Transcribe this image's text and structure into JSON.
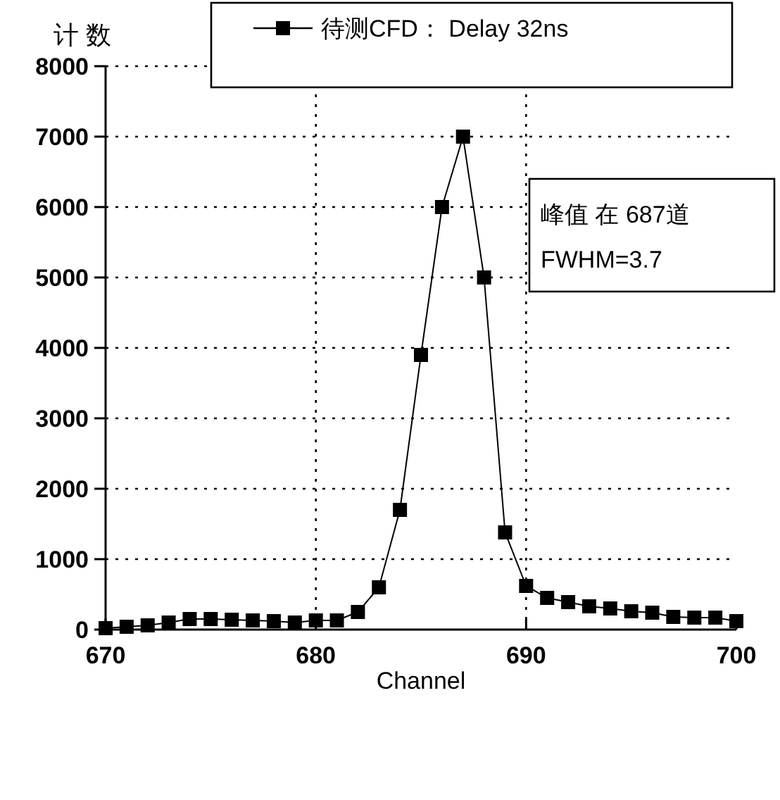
{
  "chart_data": {
    "type": "line",
    "xlabel": "Channel",
    "ylabel": "计 数",
    "x": [
      670,
      671,
      672,
      673,
      674,
      675,
      676,
      677,
      678,
      679,
      680,
      681,
      682,
      683,
      684,
      685,
      686,
      687,
      688,
      689,
      690,
      691,
      692,
      693,
      694,
      695,
      696,
      697,
      698,
      699,
      700
    ],
    "series": [
      {
        "name": "待测CFD： Delay 32ns",
        "color": "#000000",
        "values": [
          20,
          40,
          60,
          100,
          150,
          150,
          140,
          130,
          120,
          100,
          130,
          130,
          250,
          600,
          1700,
          3900,
          6000,
          7000,
          5000,
          1380,
          620,
          450,
          390,
          330,
          300,
          260,
          240,
          180,
          170,
          170,
          120
        ]
      }
    ],
    "xlim": [
      670,
      700
    ],
    "xticks": [
      670,
      680,
      690,
      700
    ],
    "ylim": [
      0,
      8000
    ],
    "yticks": [
      0,
      1000,
      2000,
      3000,
      4000,
      5000,
      6000,
      7000,
      8000
    ],
    "grid": true,
    "legend": "top",
    "marker": "square",
    "line_style": "solid",
    "annotations": [
      "峰值 在 687道",
      "FWHM=3.7"
    ]
  }
}
